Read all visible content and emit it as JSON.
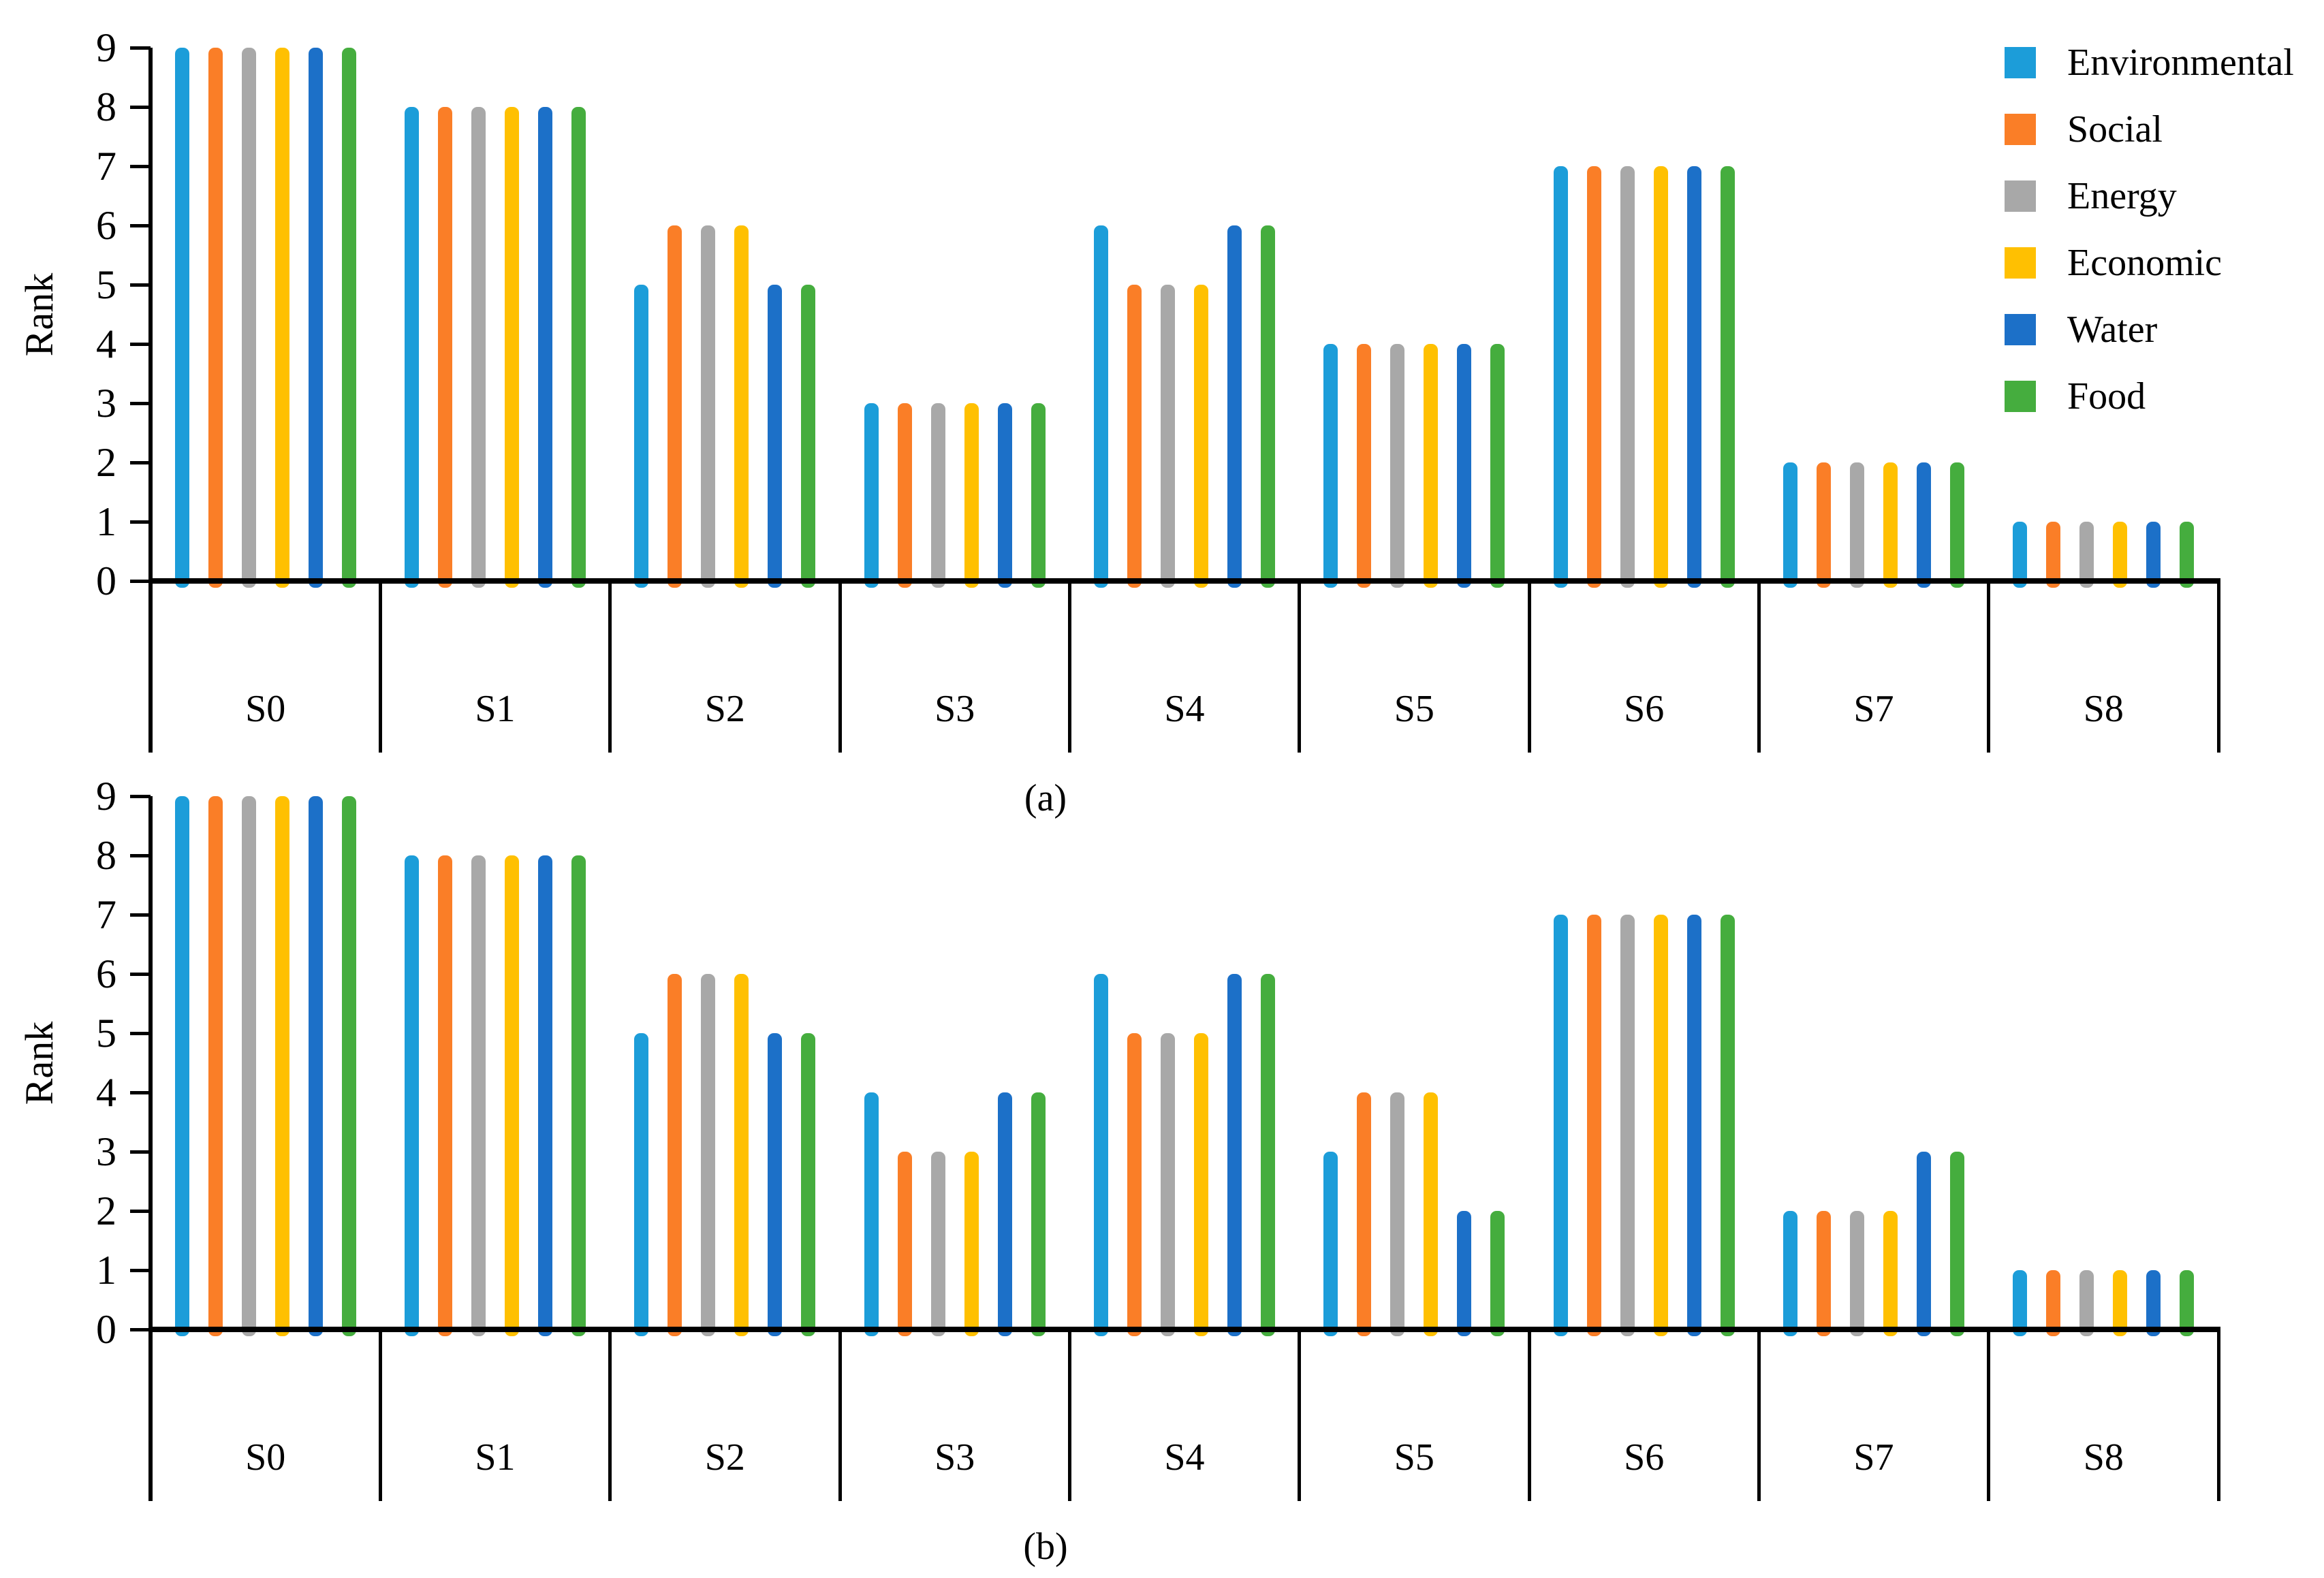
{
  "ylabel": "Rank",
  "y_ticks": [
    0,
    1,
    2,
    3,
    4,
    5,
    6,
    7,
    8,
    9
  ],
  "categories": [
    "S0",
    "S1",
    "S2",
    "S3",
    "S4",
    "S5",
    "S6",
    "S7",
    "S8"
  ],
  "legend": [
    {
      "label": "Environmental",
      "color": "#1C9DD9"
    },
    {
      "label": "Social",
      "color": "#FA7E27"
    },
    {
      "label": "Energy",
      "color": "#A8A8A8"
    },
    {
      "label": "Economic",
      "color": "#FFC001"
    },
    {
      "label": "Water",
      "color": "#1C70C8"
    },
    {
      "label": "Food",
      "color": "#45AD3E"
    }
  ],
  "chart_data": [
    {
      "type": "bar",
      "panel": "(a)",
      "title": "",
      "xlabel": "",
      "ylabel": "Rank",
      "ylim": [
        0,
        9
      ],
      "grid": false,
      "legend_position": "top-right",
      "categories": [
        "S0",
        "S1",
        "S2",
        "S3",
        "S4",
        "S5",
        "S6",
        "S7",
        "S8"
      ],
      "series": [
        {
          "name": "Environmental",
          "values": [
            9,
            8,
            5,
            3,
            6,
            4,
            7,
            2,
            1
          ]
        },
        {
          "name": "Social",
          "values": [
            9,
            8,
            6,
            3,
            5,
            4,
            7,
            2,
            1
          ]
        },
        {
          "name": "Energy",
          "values": [
            9,
            8,
            6,
            3,
            5,
            4,
            7,
            2,
            1
          ]
        },
        {
          "name": "Economic",
          "values": [
            9,
            8,
            6,
            3,
            5,
            4,
            7,
            2,
            1
          ]
        },
        {
          "name": "Water",
          "values": [
            9,
            8,
            5,
            3,
            6,
            4,
            7,
            2,
            1
          ]
        },
        {
          "name": "Food",
          "values": [
            9,
            8,
            5,
            3,
            6,
            4,
            7,
            2,
            1
          ]
        }
      ]
    },
    {
      "type": "bar",
      "panel": "(b)",
      "title": "",
      "xlabel": "",
      "ylabel": "Rank",
      "ylim": [
        0,
        9
      ],
      "grid": false,
      "legend_position": "none",
      "categories": [
        "S0",
        "S1",
        "S2",
        "S3",
        "S4",
        "S5",
        "S6",
        "S7",
        "S8"
      ],
      "series": [
        {
          "name": "Environmental",
          "values": [
            9,
            8,
            5,
            4,
            6,
            3,
            7,
            2,
            1
          ]
        },
        {
          "name": "Social",
          "values": [
            9,
            8,
            6,
            3,
            5,
            4,
            7,
            2,
            1
          ]
        },
        {
          "name": "Energy",
          "values": [
            9,
            8,
            6,
            3,
            5,
            4,
            7,
            2,
            1
          ]
        },
        {
          "name": "Economic",
          "values": [
            9,
            8,
            6,
            3,
            5,
            4,
            7,
            2,
            1
          ]
        },
        {
          "name": "Water",
          "values": [
            9,
            8,
            5,
            4,
            6,
            2,
            7,
            3,
            1
          ]
        },
        {
          "name": "Food",
          "values": [
            9,
            8,
            5,
            4,
            6,
            2,
            7,
            3,
            1
          ]
        }
      ]
    }
  ]
}
